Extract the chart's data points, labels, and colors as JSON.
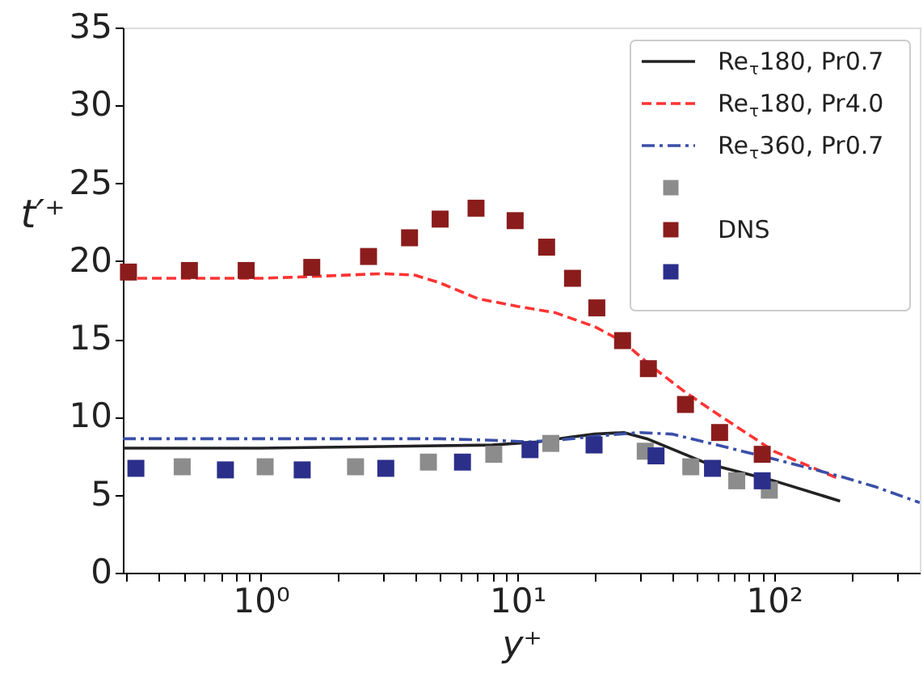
{
  "chart_data": {
    "type": "line",
    "xlabel": "y⁺",
    "ylabel": "t′⁺",
    "log": "x",
    "legend": "top right",
    "xlim": [
      0.29,
      370
    ],
    "ylim": [
      0,
      35
    ],
    "yticks": [
      0,
      5,
      10,
      15,
      20,
      25,
      30,
      35
    ],
    "xticks": [
      {
        "value": 0.3,
        "label": null
      },
      {
        "value": 0.4,
        "label": null
      },
      {
        "value": 0.5,
        "label": null
      },
      {
        "value": 0.6,
        "label": null
      },
      {
        "value": 0.7,
        "label": null
      },
      {
        "value": 0.8,
        "label": null
      },
      {
        "value": 0.9,
        "label": null
      },
      {
        "value": 1,
        "label": "10⁰"
      },
      {
        "value": 2,
        "label": null
      },
      {
        "value": 3,
        "label": null
      },
      {
        "value": 4,
        "label": null
      },
      {
        "value": 5,
        "label": null
      },
      {
        "value": 6,
        "label": null
      },
      {
        "value": 7,
        "label": null
      },
      {
        "value": 8,
        "label": null
      },
      {
        "value": 9,
        "label": null
      },
      {
        "value": 10,
        "label": "10¹"
      },
      {
        "value": 20,
        "label": null
      },
      {
        "value": 30,
        "label": null
      },
      {
        "value": 40,
        "label": null
      },
      {
        "value": 50,
        "label": null
      },
      {
        "value": 60,
        "label": null
      },
      {
        "value": 70,
        "label": null
      },
      {
        "value": 80,
        "label": null
      },
      {
        "value": 90,
        "label": null
      },
      {
        "value": 100,
        "label": "10²"
      },
      {
        "value": 200,
        "label": null
      },
      {
        "value": 300,
        "label": null
      }
    ],
    "series": [
      {
        "name": "Re$_{τ}$180, Pr0.7",
        "color": "#222222",
        "line_style": "solid",
        "marker": "none",
        "x": [
          0.29,
          1,
          3,
          8,
          12,
          16,
          20,
          26,
          32,
          55,
          100,
          181
        ],
        "values": [
          8.0,
          8.0,
          8.1,
          8.2,
          8.4,
          8.7,
          8.9,
          9.0,
          8.6,
          7.0,
          5.9,
          4.6
        ]
      },
      {
        "name": "Re$_{τ}$180, Pr4.0",
        "color": "#ff3333",
        "line_style": "dashed",
        "marker": "none",
        "x": [
          0.29,
          1,
          1.5,
          3,
          4,
          5,
          7,
          10,
          14,
          20,
          26,
          33,
          45,
          60,
          100,
          175
        ],
        "values": [
          18.9,
          18.9,
          19.0,
          19.2,
          19.1,
          18.6,
          17.6,
          17.1,
          16.7,
          15.8,
          14.8,
          13.3,
          11.6,
          10.2,
          7.8,
          6.1
        ]
      },
      {
        "name": "Re$_{τ}$360, Pr0.7",
        "color": "#3a4fa8",
        "line_style": "dashdot",
        "marker": "none",
        "x": [
          0.29,
          5,
          8,
          11,
          14,
          25,
          30,
          40,
          60,
          100,
          180,
          250,
          370
        ],
        "values": [
          8.6,
          8.6,
          8.5,
          8.4,
          8.5,
          8.9,
          9.0,
          8.9,
          8.2,
          7.3,
          6.2,
          5.5,
          4.5
        ]
      },
      {
        "type": "scatter",
        "color": "#8c8c8c",
        "marker": "square",
        "x": [
          0.494,
          1.04,
          2.34,
          4.5,
          8.09,
          13.5,
          31.5,
          47.4,
          71.6,
          95.9
        ],
        "values": [
          6.8,
          6.8,
          6.8,
          7.1,
          7.6,
          8.3,
          7.8,
          6.8,
          5.9,
          5.3
        ]
      },
      {
        "name": "DNS",
        "type": "scatter",
        "color": "#8b1c1c",
        "marker": "square",
        "x": [
          0.305,
          0.527,
          0.877,
          1.58,
          2.63,
          3.8,
          5.0,
          6.9,
          9.8,
          13.0,
          16.4,
          20.4,
          25.7,
          32.4,
          45.2,
          61.4,
          90
        ],
        "values": [
          19.3,
          19.4,
          19.4,
          19.6,
          20.3,
          21.5,
          22.7,
          23.4,
          22.6,
          20.9,
          18.9,
          17.0,
          14.9,
          13.1,
          10.8,
          9.0,
          7.6
        ]
      },
      {
        "type": "scatter",
        "color": "#2b2f8a",
        "marker": "square",
        "x": [
          0.326,
          0.728,
          1.45,
          3.07,
          6.11,
          11.2,
          19.9,
          34.7,
          57.6,
          90
        ],
        "values": [
          6.7,
          6.6,
          6.6,
          6.7,
          7.1,
          7.9,
          8.2,
          7.5,
          6.7,
          5.9
        ]
      }
    ]
  }
}
